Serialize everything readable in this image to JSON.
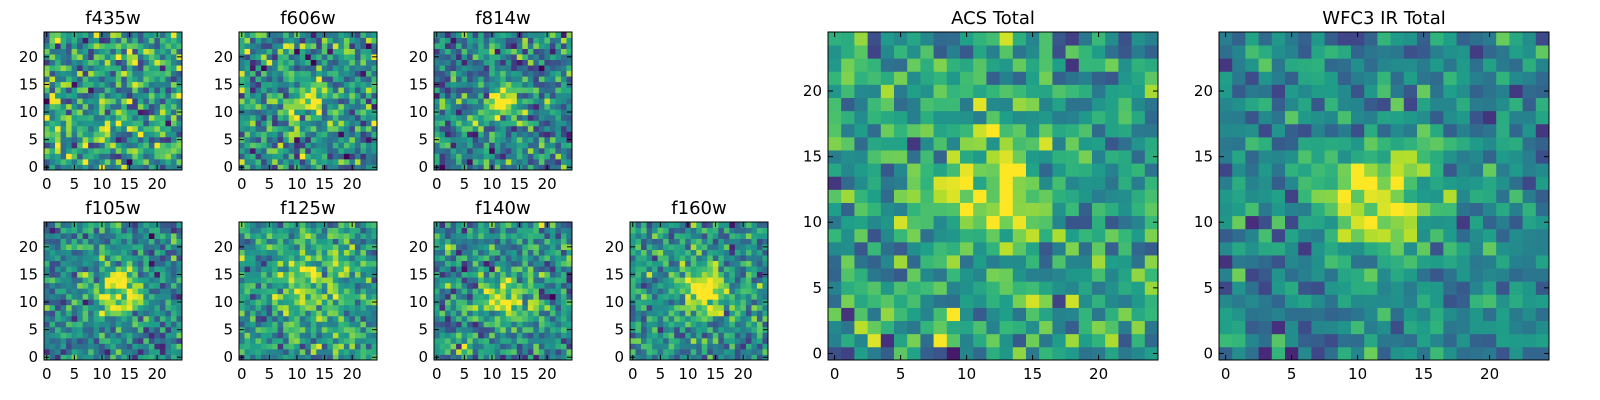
{
  "chart_data": [
    {
      "type": "heatmap",
      "title": "f435w",
      "x_ticks": [
        0,
        5,
        10,
        15,
        20
      ],
      "y_ticks": [
        0,
        5,
        10,
        15,
        20
      ],
      "xlim": [
        -0.5,
        24.5
      ],
      "ylim": [
        -0.5,
        24.5
      ],
      "grid": false,
      "seed": 11,
      "blob": {
        "cx": 12,
        "cy": 7,
        "amp": 0.0,
        "sigma": 3
      },
      "noise": 0.75,
      "base": 0.55
    },
    {
      "type": "heatmap",
      "title": "f606w",
      "x_ticks": [
        0,
        5,
        10,
        15,
        20
      ],
      "y_ticks": [
        0,
        5,
        10,
        15,
        20
      ],
      "xlim": [
        -0.5,
        24.5
      ],
      "ylim": [
        -0.5,
        24.5
      ],
      "grid": false,
      "seed": 23,
      "blob": {
        "cx": 12,
        "cy": 12,
        "amp": 0.35,
        "sigma": 2.5
      },
      "noise": 0.7,
      "base": 0.5
    },
    {
      "type": "heatmap",
      "title": "f814w",
      "x_ticks": [
        0,
        5,
        10,
        15,
        20
      ],
      "y_ticks": [
        0,
        5,
        10,
        15,
        20
      ],
      "xlim": [
        -0.5,
        24.5
      ],
      "ylim": [
        -0.5,
        24.5
      ],
      "grid": false,
      "seed": 37,
      "blob": {
        "cx": 12,
        "cy": 12,
        "amp": 0.55,
        "sigma": 2.2
      },
      "noise": 0.65,
      "base": 0.45
    },
    {
      "type": "heatmap",
      "title": "f105w",
      "x_ticks": [
        0,
        5,
        10,
        15,
        20
      ],
      "y_ticks": [
        0,
        5,
        10,
        15,
        20
      ],
      "xlim": [
        -0.5,
        24.5
      ],
      "ylim": [
        -0.5,
        24.5
      ],
      "grid": false,
      "seed": 41,
      "blob": {
        "cx": 13,
        "cy": 12,
        "amp": 0.55,
        "sigma": 3
      },
      "noise": 0.55,
      "base": 0.45
    },
    {
      "type": "heatmap",
      "title": "f125w",
      "x_ticks": [
        0,
        5,
        10,
        15,
        20
      ],
      "y_ticks": [
        0,
        5,
        10,
        15,
        20
      ],
      "xlim": [
        -0.5,
        24.5
      ],
      "ylim": [
        -0.5,
        24.5
      ],
      "grid": false,
      "seed": 53,
      "blob": {
        "cx": 12,
        "cy": 13,
        "amp": 0.3,
        "sigma": 3.5
      },
      "noise": 0.55,
      "base": 0.55
    },
    {
      "type": "heatmap",
      "title": "f140w",
      "x_ticks": [
        0,
        5,
        10,
        15,
        20
      ],
      "y_ticks": [
        0,
        5,
        10,
        15,
        20
      ],
      "xlim": [
        -0.5,
        24.5
      ],
      "ylim": [
        -0.5,
        24.5
      ],
      "grid": false,
      "seed": 67,
      "blob": {
        "cx": 12,
        "cy": 11,
        "amp": 0.45,
        "sigma": 2.8
      },
      "noise": 0.6,
      "base": 0.5
    },
    {
      "type": "heatmap",
      "title": "f160w",
      "x_ticks": [
        0,
        5,
        10,
        15,
        20
      ],
      "y_ticks": [
        0,
        5,
        10,
        15,
        20
      ],
      "xlim": [
        -0.5,
        24.5
      ],
      "ylim": [
        -0.5,
        24.5
      ],
      "grid": false,
      "seed": 79,
      "blob": {
        "cx": 13,
        "cy": 12,
        "amp": 0.55,
        "sigma": 2.8
      },
      "noise": 0.55,
      "base": 0.5
    },
    {
      "type": "heatmap",
      "title": "ACS Total",
      "x_ticks": [
        0,
        5,
        10,
        15,
        20
      ],
      "y_ticks": [
        0,
        5,
        10,
        15,
        20
      ],
      "xlim": [
        -0.5,
        24.5
      ],
      "ylim": [
        -0.5,
        24.5
      ],
      "grid": false,
      "seed": 97,
      "blob": {
        "cx": 12,
        "cy": 12,
        "amp": 0.45,
        "sigma": 2.5
      },
      "noise": 0.55,
      "base": 0.55
    },
    {
      "type": "heatmap",
      "title": "WFC3 IR Total",
      "x_ticks": [
        0,
        5,
        10,
        15,
        20
      ],
      "y_ticks": [
        0,
        5,
        10,
        15,
        20
      ],
      "xlim": [
        -0.5,
        24.5
      ],
      "ylim": [
        -0.5,
        24.5
      ],
      "grid": false,
      "seed": 113,
      "blob": {
        "cx": 12,
        "cy": 12,
        "amp": 0.55,
        "sigma": 3
      },
      "noise": 0.45,
      "base": 0.45
    }
  ],
  "colormap": [
    "#440154",
    "#482878",
    "#3e4989",
    "#31688e",
    "#26828e",
    "#1f9e89",
    "#35b779",
    "#6ece58",
    "#b5de2b",
    "#fde725"
  ]
}
